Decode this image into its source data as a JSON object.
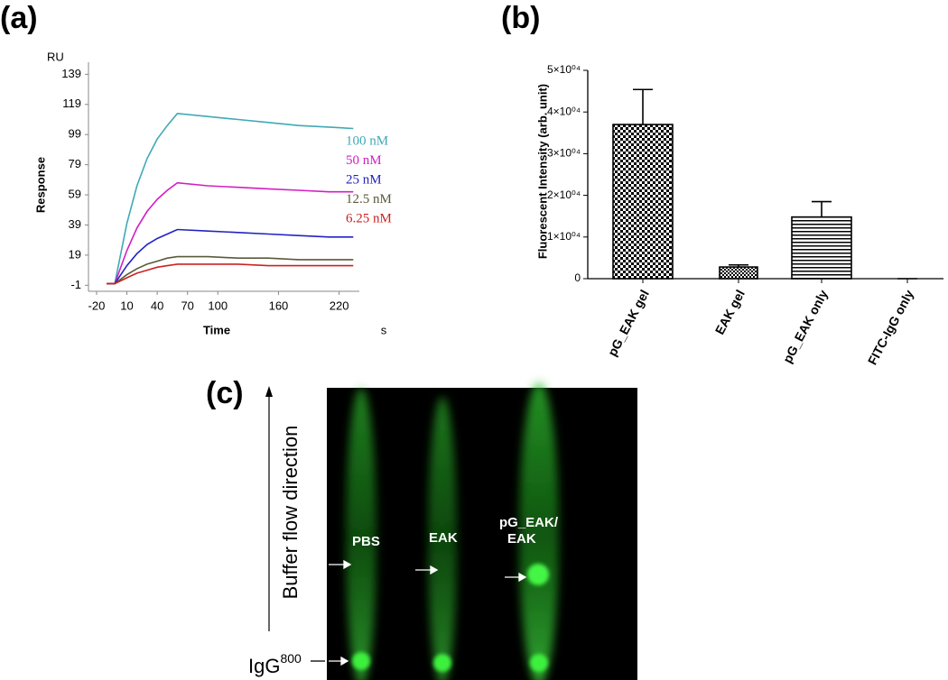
{
  "chart_data": [
    {
      "type": "line",
      "panel_label": "(a)",
      "y_unit": "RU",
      "y_label": "Response",
      "x_label": "Time",
      "x_unit": "s",
      "x": [
        -10,
        -2,
        10,
        20,
        30,
        40,
        50,
        60,
        90,
        120,
        150,
        180,
        210,
        234
      ],
      "xlim": [
        -28,
        240
      ],
      "ylim": [
        -5,
        147
      ],
      "xticks": [
        -20,
        10,
        40,
        70,
        100,
        160,
        220
      ],
      "yticks": [
        -1,
        19,
        39,
        59,
        79,
        99,
        119,
        139
      ],
      "series": [
        {
          "name": "100 nM",
          "color": "#3fa9b5",
          "values": [
            0,
            0,
            40,
            65,
            83,
            96,
            105,
            113,
            111,
            109,
            107,
            105,
            104,
            103
          ]
        },
        {
          "name": "50 nM",
          "color": "#d21fc4",
          "values": [
            0,
            0,
            22,
            37,
            48,
            56,
            62,
            67,
            65,
            64,
            63,
            62,
            61,
            61
          ]
        },
        {
          "name": "25 nM",
          "color": "#2323c0",
          "values": [
            0,
            0,
            12,
            20,
            26,
            30,
            33,
            36,
            35,
            34,
            33,
            32,
            31,
            31
          ]
        },
        {
          "name": "12.5 nM",
          "color": "#5a5a3a",
          "values": [
            0,
            0,
            6,
            10,
            13,
            15,
            17,
            18,
            18,
            17,
            17,
            16,
            16,
            16
          ]
        },
        {
          "name": "6.25 nM",
          "color": "#cc2222",
          "values": [
            0,
            0,
            4,
            7,
            9,
            11,
            12,
            13,
            13,
            13,
            12,
            12,
            12,
            12
          ]
        }
      ]
    },
    {
      "type": "bar",
      "panel_label": "(b)",
      "y_label": "Fluorescent Intensity (arb. unit)",
      "categories": [
        "pG_EAK gel",
        "EAK gel",
        "pG_EAK only",
        "FITC-IgG only"
      ],
      "values": [
        37000,
        2800,
        14800,
        0
      ],
      "errors": [
        8400,
        500,
        3700,
        0
      ],
      "color": "#000000",
      "ylim": [
        0,
        50000
      ],
      "yticks": [
        0,
        {
          "value": 10000,
          "label": "1×10⁰⁴"
        },
        {
          "value": 20000,
          "label": "2×10⁰⁴"
        },
        {
          "value": 30000,
          "label": "3×10⁰⁴"
        },
        {
          "value": 40000,
          "label": "4×10⁰⁴"
        },
        {
          "value": 50000,
          "label": "5×10⁰⁴"
        }
      ]
    }
  ],
  "panel_c": {
    "panel_label": "(c)",
    "axis_label": "Buffer flow direction",
    "lanes": [
      [
        "PBS"
      ],
      [
        "EAK"
      ],
      [
        "pG_EAK/",
        "EAK"
      ]
    ],
    "marker": {
      "text": "IgG",
      "sup": "800"
    }
  }
}
